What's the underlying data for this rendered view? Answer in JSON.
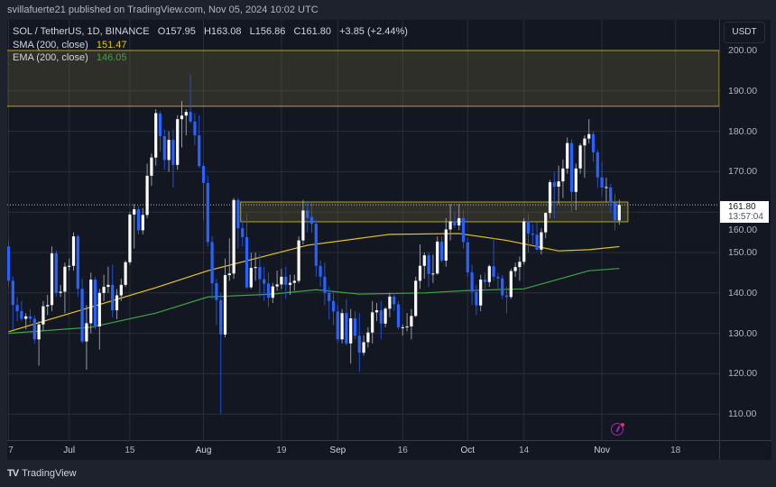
{
  "publisher_line": "svillafuerte21 published on TradingView.com, Nov 05, 2024 10:02 UTC",
  "legend": {
    "symbol": "SOL / TetherUS, 1D, BINANCE",
    "open": "O157.95",
    "high": "H163.08",
    "low": "L156.86",
    "close": "C161.80",
    "change": "+3.85 (+2.44%)",
    "sma_label": "SMA (200, close)",
    "sma_value": "151.47",
    "ema_label": "EMA (200, close)",
    "ema_value": "146.05"
  },
  "price_axis": {
    "currency": "USDT",
    "last_price": "161.80",
    "countdown": "13:57:04"
  },
  "footer": {
    "brand": "TradingView",
    "logo": "TV"
  },
  "colors": {
    "up": "#ffffff",
    "down": "#2962ff",
    "sma": "#e6c520",
    "ema": "#3fa243",
    "zone": "#b5a520",
    "event": "#9c27b0"
  },
  "icons": {
    "event": "earnings-event-icon"
  },
  "chart_data": {
    "type": "candlestick",
    "title": "SOL / TetherUS, 1D, BINANCE",
    "xlabel": "",
    "ylabel": "USDT",
    "ylim": [
      104,
      204
    ],
    "yticks": [
      "110.00",
      "120.00",
      "130.00",
      "140.00",
      "150.00",
      "160.00",
      "170.00",
      "180.00",
      "190.00",
      "200.00"
    ],
    "ytick_values": [
      110,
      120,
      130,
      140,
      150,
      160,
      170,
      180,
      190,
      200
    ],
    "xticks": [
      {
        "label": "7",
        "index": 0,
        "major": false
      },
      {
        "label": "Jul",
        "index": 14,
        "major": true
      },
      {
        "label": "15",
        "index": 28,
        "major": false
      },
      {
        "label": "Aug",
        "index": 45,
        "major": true
      },
      {
        "label": "19",
        "index": 63,
        "major": false
      },
      {
        "label": "Sep",
        "index": 76,
        "major": true
      },
      {
        "label": "16",
        "index": 91,
        "major": false
      },
      {
        "label": "Oct",
        "index": 106,
        "major": true
      },
      {
        "label": "14",
        "index": 119,
        "major": false
      },
      {
        "label": "Nov",
        "index": 137,
        "major": true
      },
      {
        "label": "18",
        "index": 154,
        "major": false
      }
    ],
    "grid": true,
    "first_date": "2024-06-17",
    "last_date": "2024-11-05",
    "ohlc": [
      [
        151.5,
        153,
        141.5,
        143
      ],
      [
        143,
        144,
        131,
        137
      ],
      [
        137,
        139,
        133,
        135.5
      ],
      [
        135.5,
        138,
        133,
        133.6
      ],
      [
        133.6,
        135,
        131,
        134.2
      ],
      [
        134.2,
        136,
        132.5,
        133.6
      ],
      [
        133.6,
        134.5,
        127.5,
        128.5
      ],
      [
        128.5,
        133,
        122,
        132.2
      ],
      [
        132.2,
        138,
        130.5,
        136.7
      ],
      [
        136.7,
        139.5,
        134.5,
        137
      ],
      [
        137,
        151.5,
        135.5,
        149.8
      ],
      [
        149.8,
        150.5,
        139,
        140
      ],
      [
        140,
        142,
        139,
        140.3
      ],
      [
        140.3,
        147.5,
        135,
        146.5
      ],
      [
        146.5,
        148.5,
        145.5,
        146.7
      ],
      [
        146.7,
        155,
        145.5,
        154
      ],
      [
        154,
        154.5,
        139,
        141
      ],
      [
        141,
        143.5,
        127.5,
        128
      ],
      [
        128,
        137,
        121,
        132.5
      ],
      [
        132.5,
        145,
        130,
        143.3
      ],
      [
        143.3,
        144,
        131,
        131.7
      ],
      [
        131.7,
        141,
        126,
        140
      ],
      [
        140,
        144.5,
        138,
        141.5
      ],
      [
        141.5,
        146.5,
        140,
        142
      ],
      [
        142,
        147,
        134,
        135.7
      ],
      [
        135.7,
        141,
        133.5,
        139.4
      ],
      [
        139.4,
        143.5,
        138,
        142
      ],
      [
        142,
        148,
        141.5,
        147.6
      ],
      [
        147.6,
        160,
        147,
        159.4
      ],
      [
        159.4,
        162,
        151,
        160.7
      ],
      [
        160.7,
        161.5,
        154.5,
        155.5
      ],
      [
        155.5,
        161,
        154.5,
        159.3
      ],
      [
        159.3,
        172,
        158.5,
        169
      ],
      [
        169,
        174.5,
        166.5,
        173.5
      ],
      [
        173.5,
        185.5,
        171.5,
        184.5
      ],
      [
        184.4,
        185,
        175,
        178.8
      ],
      [
        178.8,
        180.5,
        170.5,
        172.9
      ],
      [
        172.9,
        180,
        170,
        177.9
      ],
      [
        177.9,
        180.5,
        166,
        171.7
      ],
      [
        171.7,
        184,
        170.5,
        183
      ],
      [
        183,
        187.5,
        176,
        183.9
      ],
      [
        183.9,
        185.5,
        179,
        184.8
      ],
      [
        184.8,
        194,
        182,
        182.4
      ],
      [
        182.4,
        184.5,
        176.5,
        179
      ],
      [
        179,
        184,
        171,
        171.4
      ],
      [
        171.4,
        172,
        158,
        167.2
      ],
      [
        167.2,
        169,
        151.5,
        152.6
      ],
      [
        152.6,
        154,
        138.5,
        142.4
      ],
      [
        142.4,
        143.5,
        132,
        138.2
      ],
      [
        138.2,
        140,
        110,
        129.7
      ],
      [
        129.7,
        148.5,
        129,
        144.4
      ],
      [
        144.4,
        153.5,
        143,
        144.8
      ],
      [
        144.8,
        163.5,
        143.5,
        163
      ],
      [
        163,
        163.5,
        151,
        156
      ],
      [
        156,
        158,
        151.5,
        153.8
      ],
      [
        153.8,
        159.5,
        141,
        141.4
      ],
      [
        141.4,
        150,
        141,
        146.2
      ],
      [
        146.2,
        150,
        143,
        146.4
      ],
      [
        146.4,
        149.5,
        139,
        143.4
      ],
      [
        143.4,
        146.5,
        138,
        142.3
      ],
      [
        142.3,
        145,
        136.5,
        138.8
      ],
      [
        138.8,
        142.5,
        137.5,
        141.6
      ],
      [
        141.6,
        145.5,
        140.5,
        142.1
      ],
      [
        142.1,
        146,
        141,
        144
      ],
      [
        144,
        146.5,
        138.5,
        142
      ],
      [
        142,
        144.5,
        139.5,
        142.5
      ],
      [
        142.5,
        144.5,
        140.5,
        143
      ],
      [
        143,
        154,
        142.5,
        153
      ],
      [
        153,
        163,
        152,
        160.4
      ],
      [
        160.4,
        162.5,
        155,
        158.6
      ],
      [
        158.8,
        162.5,
        155,
        157.1
      ],
      [
        157.1,
        158,
        144,
        146.7
      ],
      [
        146.7,
        148,
        141.5,
        144
      ],
      [
        144,
        147.5,
        137,
        140
      ],
      [
        140,
        141.5,
        133.5,
        138
      ],
      [
        138,
        140,
        132,
        135.4
      ],
      [
        135.4,
        137,
        127.5,
        128.5
      ],
      [
        128.5,
        136,
        127.5,
        135
      ],
      [
        135,
        138.5,
        127,
        127.5
      ],
      [
        127.5,
        136,
        122.5,
        133.7
      ],
      [
        133.7,
        135.5,
        128.5,
        129.4
      ],
      [
        129.4,
        135,
        120.5,
        125.2
      ],
      [
        125.2,
        129.5,
        124.5,
        127.8
      ],
      [
        127.8,
        131.5,
        126.5,
        130.2
      ],
      [
        130.2,
        138,
        127.5,
        135.2
      ],
      [
        135.2,
        137.5,
        133,
        135.7
      ],
      [
        135.7,
        138,
        128.5,
        132.4
      ],
      [
        132.4,
        136.5,
        131.5,
        136.1
      ],
      [
        136.1,
        140,
        134,
        139.1
      ],
      [
        139.1,
        140,
        135.5,
        137.2
      ],
      [
        137.2,
        138,
        131,
        131.5
      ],
      [
        131.5,
        132.2,
        129.5,
        131.5
      ],
      [
        131.5,
        135,
        130.5,
        131.7
      ],
      [
        131.7,
        136,
        128.5,
        134.3
      ],
      [
        134.3,
        144,
        134,
        143
      ],
      [
        143,
        152,
        141,
        146.7
      ],
      [
        146.7,
        150,
        143.5,
        149.3
      ],
      [
        149.3,
        150,
        141.5,
        144.7
      ],
      [
        144.7,
        149.5,
        142.5,
        144.8
      ],
      [
        144.8,
        154,
        144.5,
        152.7
      ],
      [
        152.7,
        154,
        147.5,
        148
      ],
      [
        148,
        158.5,
        146.5,
        155.7
      ],
      [
        155.7,
        162,
        153,
        157.7
      ],
      [
        157.7,
        160,
        156,
        156.7
      ],
      [
        156.7,
        162,
        155.5,
        158.5
      ],
      [
        158.5,
        160.5,
        151,
        152.6
      ],
      [
        152.5,
        153.5,
        144,
        145.1
      ],
      [
        145.1,
        147,
        137,
        140.3
      ],
      [
        140.3,
        142,
        134.5,
        136.9
      ],
      [
        136.9,
        144.5,
        135.5,
        143.3
      ],
      [
        143.3,
        145,
        140.5,
        142.7
      ],
      [
        142.7,
        147,
        141.5,
        146.6
      ],
      [
        146.6,
        153.5,
        143,
        144
      ],
      [
        144,
        145,
        140.5,
        143.6
      ],
      [
        143.6,
        144.5,
        138.5,
        139.4
      ],
      [
        139.4,
        141.5,
        135,
        139
      ],
      [
        139,
        146,
        138.5,
        145.4
      ],
      [
        145.4,
        147.5,
        144,
        146.4
      ],
      [
        146.4,
        149,
        143,
        147.7
      ],
      [
        147.7,
        158.5,
        147,
        157.7
      ],
      [
        157.7,
        159.5,
        150,
        154.7
      ],
      [
        154.7,
        157,
        152,
        154.4
      ],
      [
        154.4,
        157.5,
        150.5,
        150.7
      ],
      [
        150.7,
        156,
        149.5,
        155
      ],
      [
        155,
        160,
        153.5,
        159.8
      ],
      [
        159.8,
        168,
        158.5,
        167.4
      ],
      [
        167.4,
        170,
        158.5,
        166.3
      ],
      [
        166.3,
        171.5,
        162,
        167.6
      ],
      [
        167.6,
        173,
        163.5,
        170.8
      ],
      [
        170.8,
        178.5,
        169.5,
        177.1
      ],
      [
        177.1,
        178,
        160,
        165
      ],
      [
        165,
        172,
        160.5,
        170.8
      ],
      [
        170.8,
        177,
        169.5,
        176.5
      ],
      [
        176.5,
        179,
        168.5,
        178.2
      ],
      [
        178.2,
        183,
        177,
        179.3
      ],
      [
        179.3,
        180,
        172.5,
        174.8
      ],
      [
        174.8,
        175.5,
        166,
        168.6
      ],
      [
        168.6,
        172.5,
        164,
        166.1
      ],
      [
        166.1,
        168.5,
        162.5,
        166.2
      ],
      [
        166.1,
        167,
        160,
        162.4
      ],
      [
        162.4,
        164.5,
        155.5,
        157.95
      ],
      [
        157.95,
        163.08,
        156.86,
        161.8
      ]
    ],
    "sma_200": [
      [
        0,
        130.4
      ],
      [
        34,
        141.3
      ],
      [
        46,
        145.5
      ],
      [
        69,
        151.8
      ],
      [
        88,
        154.5
      ],
      [
        104,
        154.7
      ],
      [
        115,
        153
      ],
      [
        127,
        150.4
      ],
      [
        134,
        150.7
      ],
      [
        141,
        151.47
      ]
    ],
    "ema_200": [
      [
        0,
        130
      ],
      [
        19,
        131.5
      ],
      [
        34,
        135
      ],
      [
        46,
        139
      ],
      [
        61,
        139.7
      ],
      [
        71,
        140.8
      ],
      [
        81,
        139.7
      ],
      [
        96,
        140
      ],
      [
        106,
        140.6
      ],
      [
        119,
        141
      ],
      [
        134,
        145.5
      ],
      [
        141,
        146.05
      ]
    ],
    "zones": [
      {
        "name": "supply-zone",
        "from_index": 0,
        "to_index": 165,
        "low": 186.2,
        "high": 200
      },
      {
        "name": "resistance-turned-support-zone",
        "from_index": 54,
        "to_index": 143,
        "low": 157.6,
        "high": 162.5
      }
    ],
    "last_price": 161.8
  }
}
